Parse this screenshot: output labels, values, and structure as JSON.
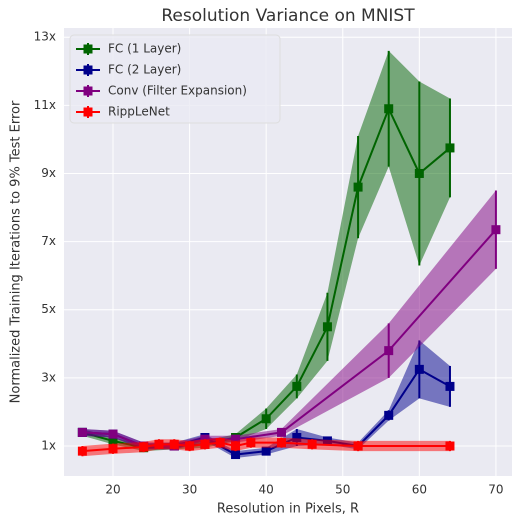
{
  "chart_data": {
    "type": "line",
    "title": "Resolution Variance on MNIST",
    "x_label": "Resolution in Pixels, R",
    "y_label": "Normalized Training Iterations to 9% Test Error",
    "xlim": [
      13.6,
      72.1
    ],
    "xticks": [
      20,
      30,
      40,
      50,
      60,
      70
    ],
    "ylim": [
      0.12,
      13.27
    ],
    "yticks": [
      {
        "value": 1,
        "label": "1x"
      },
      {
        "value": 3,
        "label": "3x"
      },
      {
        "value": 5,
        "label": "5x"
      },
      {
        "value": 7,
        "label": "7x"
      },
      {
        "value": 9,
        "label": "9x"
      },
      {
        "value": 11,
        "label": "11x"
      },
      {
        "value": 13,
        "label": "13x"
      }
    ],
    "grid": true,
    "legend": "upper left",
    "series": [
      {
        "name": "FC (1 Layer)",
        "color": "#006400",
        "x": [
          16,
          20,
          24,
          28,
          32,
          36,
          40,
          44,
          48,
          52,
          56,
          60,
          64
        ],
        "values": [
          1.4,
          1.15,
          0.95,
          1.0,
          1.05,
          1.25,
          1.8,
          2.75,
          4.5,
          8.6,
          10.9,
          9.0,
          9.75
        ],
        "errors": [
          0.1,
          0.1,
          0.1,
          0.1,
          0.1,
          0.1,
          0.3,
          0.35,
          1.0,
          1.5,
          1.7,
          2.7,
          1.45
        ]
      },
      {
        "name": "FC (2 Layer)",
        "color": "#00008b",
        "x": [
          16,
          20,
          24,
          28,
          32,
          36,
          40,
          44,
          48,
          52,
          56,
          60,
          64
        ],
        "values": [
          1.4,
          1.35,
          1.0,
          1.0,
          1.25,
          0.75,
          0.85,
          1.25,
          1.15,
          1.0,
          1.9,
          3.25,
          2.75
        ],
        "errors": [
          0.1,
          0.1,
          0.1,
          0.1,
          0.1,
          0.1,
          0.1,
          0.25,
          0.1,
          0.1,
          0.15,
          0.85,
          0.6
        ]
      },
      {
        "name": "Conv (Filter Expansion)",
        "color": "#800080",
        "x": [
          16,
          20,
          24,
          28,
          32,
          36,
          42,
          56,
          70
        ],
        "values": [
          1.4,
          1.35,
          1.0,
          1.0,
          1.2,
          1.2,
          1.4,
          3.8,
          7.35
        ],
        "errors": [
          0.1,
          0.1,
          0.1,
          0.1,
          0.1,
          0.1,
          0.1,
          0.8,
          1.15
        ]
      },
      {
        "name": "RippLeNet",
        "color": "#ff0000",
        "x": [
          16,
          20,
          24,
          26,
          28,
          30,
          32,
          34,
          36,
          38,
          42,
          46,
          52,
          64
        ],
        "values": [
          0.85,
          0.92,
          0.97,
          1.05,
          1.05,
          1.0,
          1.05,
          1.1,
          1.0,
          1.1,
          1.1,
          1.05,
          1.0,
          1.0
        ],
        "errors": [
          0.15,
          0.15,
          0.15,
          0.15,
          0.15,
          0.15,
          0.15,
          0.15,
          0.15,
          0.15,
          0.15,
          0.15,
          0.15,
          0.15
        ]
      }
    ]
  }
}
